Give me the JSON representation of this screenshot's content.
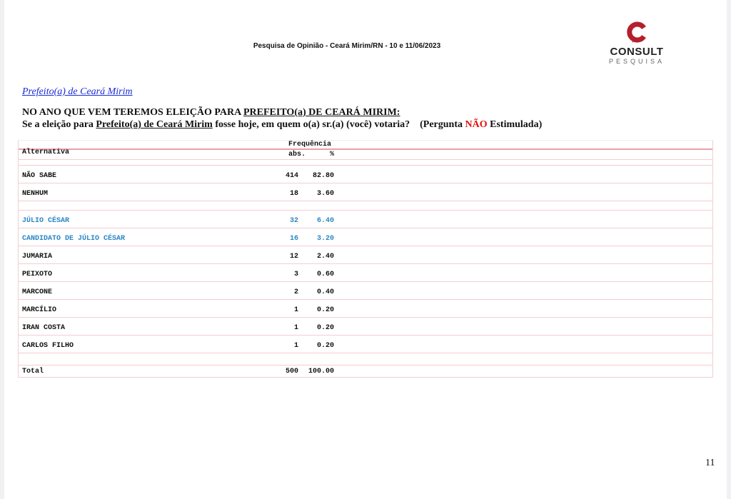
{
  "header": {
    "title": "Pesquisa de Opinião  -  Ceará Mirim/RN  - 10 e 11/06/2023"
  },
  "logo": {
    "brand": "CONSULT",
    "sub": "PESQUISA",
    "color": "#b51f2e"
  },
  "section_link": "Prefeito(a) de Ceará Mirim",
  "question": {
    "line1_prefix": "NO ANO QUE VEM TEREMOS ELEIÇÃO PARA ",
    "line1_underlined": "PREFEITO(a) DE CEARÁ MIRIM:",
    "line2_prefix": "Se a eleição para ",
    "line2_underlined": "Prefeito(a) de Ceará Mirim",
    "line2_suffix": " fosse hoje, em quem o(a) sr.(a) (você) votaria?    (Pergunta ",
    "line2_red": "NÃO",
    "line2_end": " Estimulada)"
  },
  "table": {
    "group_header": "Frequência",
    "col_alt": "Alternativa",
    "col_abs": "abs.",
    "col_pct": "%",
    "rows": [
      {
        "label": "NÃO SABE",
        "abs": "414",
        "pct": "82.80"
      },
      {
        "label": "NENHUM",
        "abs": "18",
        "pct": "3.60"
      },
      {
        "label": "JÚLIO CÉSAR",
        "abs": "32",
        "pct": "6.40",
        "highlight": "#2b86c5"
      },
      {
        "label": "CANDIDATO DE JÚLIO CÉSAR",
        "abs": "16",
        "pct": "3.20",
        "highlight": "#2b86c5"
      },
      {
        "label": "JUMARIA",
        "abs": "12",
        "pct": "2.40"
      },
      {
        "label": "PEIXOTO",
        "abs": "3",
        "pct": "0.60"
      },
      {
        "label": "MARCONE",
        "abs": "2",
        "pct": "0.40"
      },
      {
        "label": "MARCÍLIO",
        "abs": "1",
        "pct": "0.20"
      },
      {
        "label": "IRAN COSTA",
        "abs": "1",
        "pct": "0.20"
      },
      {
        "label": "CARLOS FILHO",
        "abs": "1",
        "pct": "0.20"
      }
    ],
    "total": {
      "label": "Total",
      "abs": "500",
      "pct": "100.00"
    }
  },
  "page_number": "11"
}
